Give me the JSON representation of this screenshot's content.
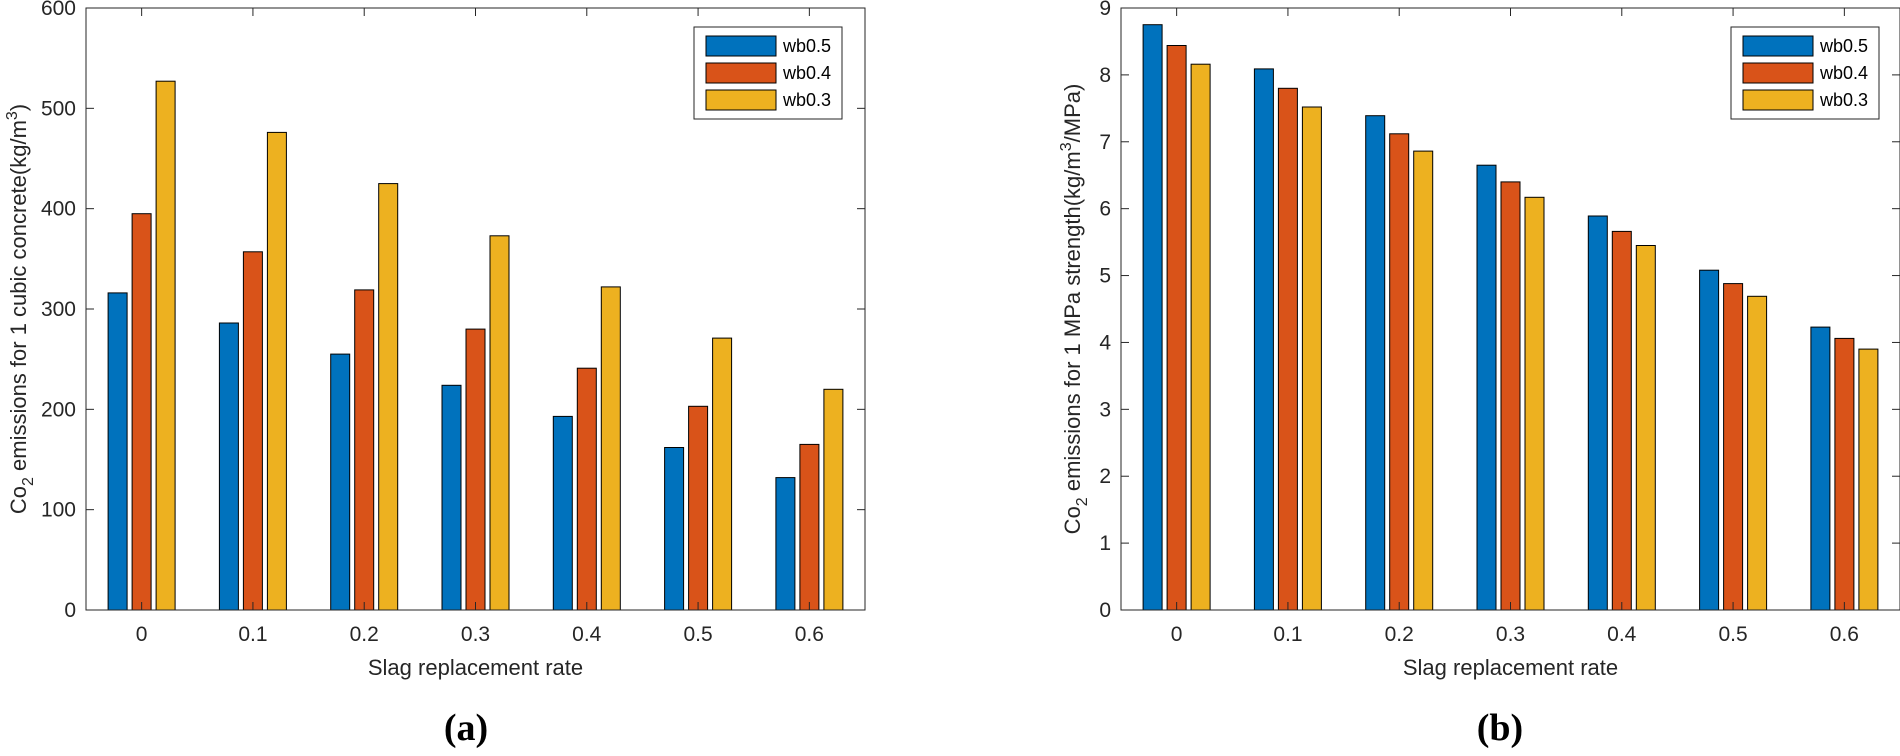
{
  "chart_data": [
    {
      "type": "bar",
      "panel_label": "(a)",
      "categories": [
        "0",
        "0.1",
        "0.2",
        "0.3",
        "0.4",
        "0.5",
        "0.6"
      ],
      "series": [
        {
          "name": "wb0.5",
          "color": "#0072BD",
          "values": [
            316,
            286,
            255,
            224,
            193,
            162,
            132
          ]
        },
        {
          "name": "wb0.4",
          "color": "#D95319",
          "values": [
            395,
            357,
            319,
            280,
            241,
            203,
            165
          ]
        },
        {
          "name": "wb0.3",
          "color": "#EDB120",
          "values": [
            527,
            476,
            425,
            373,
            322,
            271,
            220
          ]
        }
      ],
      "xlabel": "Slag replacement rate",
      "ylabel": {
        "prefix": "Co",
        "subscript": "2",
        "middle": " emissions for 1 cubic concrete(kg/m",
        "superscript": "3",
        "suffix": ")"
      },
      "ylim": [
        0,
        600
      ],
      "yticks": [
        0,
        100,
        200,
        300,
        400,
        500,
        600
      ],
      "legend_position": "top-right",
      "grid": false
    },
    {
      "type": "bar",
      "panel_label": "(b)",
      "categories": [
        "0",
        "0.1",
        "0.2",
        "0.3",
        "0.4",
        "0.5",
        "0.6"
      ],
      "series": [
        {
          "name": "wb0.5",
          "color": "#0072BD",
          "values": [
            8.75,
            8.09,
            7.39,
            6.65,
            5.89,
            5.08,
            4.23
          ]
        },
        {
          "name": "wb0.4",
          "color": "#D95319",
          "values": [
            8.44,
            7.8,
            7.12,
            6.4,
            5.66,
            4.88,
            4.06
          ]
        },
        {
          "name": "wb0.3",
          "color": "#EDB120",
          "values": [
            8.16,
            7.52,
            6.86,
            6.17,
            5.45,
            4.69,
            3.9
          ]
        }
      ],
      "xlabel": "Slag replacement rate",
      "ylabel": {
        "prefix": "Co",
        "subscript": "2",
        "middle": " emissions for 1 MPa strength(kg/m",
        "superscript": "3",
        "suffix": "/MPa)"
      },
      "ylim": [
        0,
        9
      ],
      "yticks": [
        0,
        1,
        2,
        3,
        4,
        5,
        6,
        7,
        8,
        9
      ],
      "legend_position": "top-right",
      "grid": false
    }
  ]
}
